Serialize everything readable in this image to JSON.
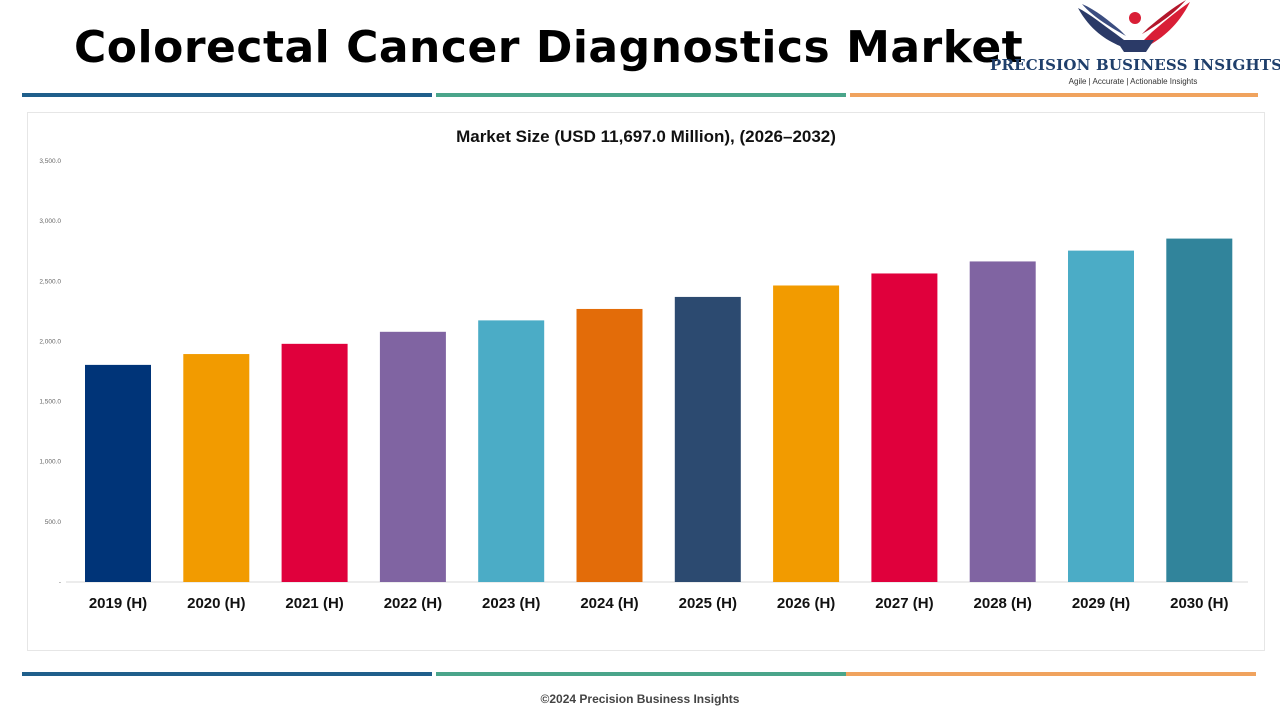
{
  "header": {
    "title": "Colorectal Cancer Diagnostics Market"
  },
  "logo": {
    "name": "PRECISION BUSINESS INSIGHTS",
    "tagline": "Agile | Accurate | Actionable Insights",
    "colors": [
      "#2b3a67",
      "#d91e36"
    ]
  },
  "stripe_colors": [
    "#1f5f8b",
    "#4aa58a",
    "#f0a35e"
  ],
  "footer": {
    "text": "©2024 Precision Business Insights"
  },
  "chart_data": {
    "type": "bar",
    "title": "Market Size (USD 11,697.0 Million), (2026–2032)",
    "xlabel": "",
    "ylabel": "",
    "ylim": [
      0,
      3500
    ],
    "yticks": [
      0,
      500,
      1000,
      1500,
      2000,
      2500,
      3000,
      3500
    ],
    "ytick_labels": [
      "-",
      "500.0",
      "1,000.0",
      "1,500.0",
      "2,000.0",
      "2,500.0",
      "3,000.0",
      "3,500.0"
    ],
    "grid": false,
    "categories": [
      "2019 (H)",
      "2020 (H)",
      "2021 (H)",
      "2022 (H)",
      "2023 (H)",
      "2024 (H)",
      "2025 (H)",
      "2026 (H)",
      "2027 (H)",
      "2028 (H)",
      "2029 (H)",
      "2030 (H)"
    ],
    "values": [
      1805,
      1895,
      1980,
      2080,
      2175,
      2270,
      2370,
      2465,
      2565,
      2665,
      2755,
      2855
    ],
    "colors": [
      "#003478",
      "#f29b00",
      "#e0003c",
      "#8064a2",
      "#4bacc6",
      "#e36c09",
      "#2c4a70",
      "#f29b00",
      "#e0003c",
      "#8064a2",
      "#4bacc6",
      "#31849b"
    ]
  }
}
